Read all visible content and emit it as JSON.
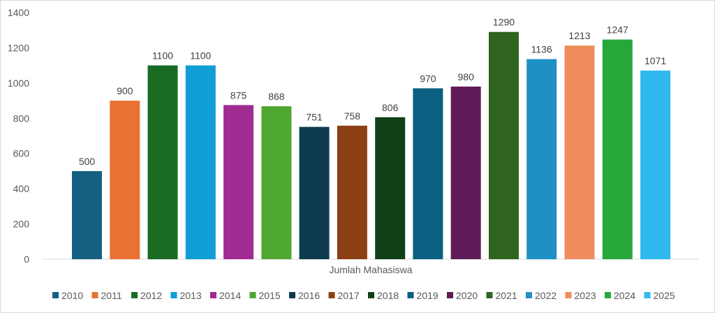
{
  "chart_data": {
    "type": "bar",
    "title": "",
    "xlabel": "Jumlah Mahasiswa",
    "ylabel": "",
    "ylim": [
      0,
      1400
    ],
    "yticks": [
      0,
      200,
      400,
      600,
      800,
      1000,
      1200,
      1400
    ],
    "grid": false,
    "legend_position": "bottom",
    "categories": [
      "Jumlah Mahasiswa"
    ],
    "series": [
      {
        "name": "2010",
        "values": [
          500
        ],
        "color": "#156082"
      },
      {
        "name": "2011",
        "values": [
          900
        ],
        "color": "#E97132"
      },
      {
        "name": "2012",
        "values": [
          1100
        ],
        "color": "#196B24"
      },
      {
        "name": "2013",
        "values": [
          1100
        ],
        "color": "#0F9ED5"
      },
      {
        "name": "2014",
        "values": [
          875
        ],
        "color": "#A02B93"
      },
      {
        "name": "2015",
        "values": [
          868
        ],
        "color": "#4EA72E"
      },
      {
        "name": "2016",
        "values": [
          751
        ],
        "color": "#0D3A4E"
      },
      {
        "name": "2017",
        "values": [
          758
        ],
        "color": "#8C3F12"
      },
      {
        "name": "2018",
        "values": [
          806
        ],
        "color": "#0F4016"
      },
      {
        "name": "2019",
        "values": [
          970
        ],
        "color": "#0B5F80"
      },
      {
        "name": "2020",
        "values": [
          980
        ],
        "color": "#601A58"
      },
      {
        "name": "2021",
        "values": [
          1290
        ],
        "color": "#2F6420"
      },
      {
        "name": "2022",
        "values": [
          1136
        ],
        "color": "#1E90C5"
      },
      {
        "name": "2023",
        "values": [
          1213
        ],
        "color": "#EE8D5B"
      },
      {
        "name": "2024",
        "values": [
          1247
        ],
        "color": "#27A83A"
      },
      {
        "name": "2025",
        "values": [
          1071
        ],
        "color": "#30B9EF"
      }
    ]
  }
}
